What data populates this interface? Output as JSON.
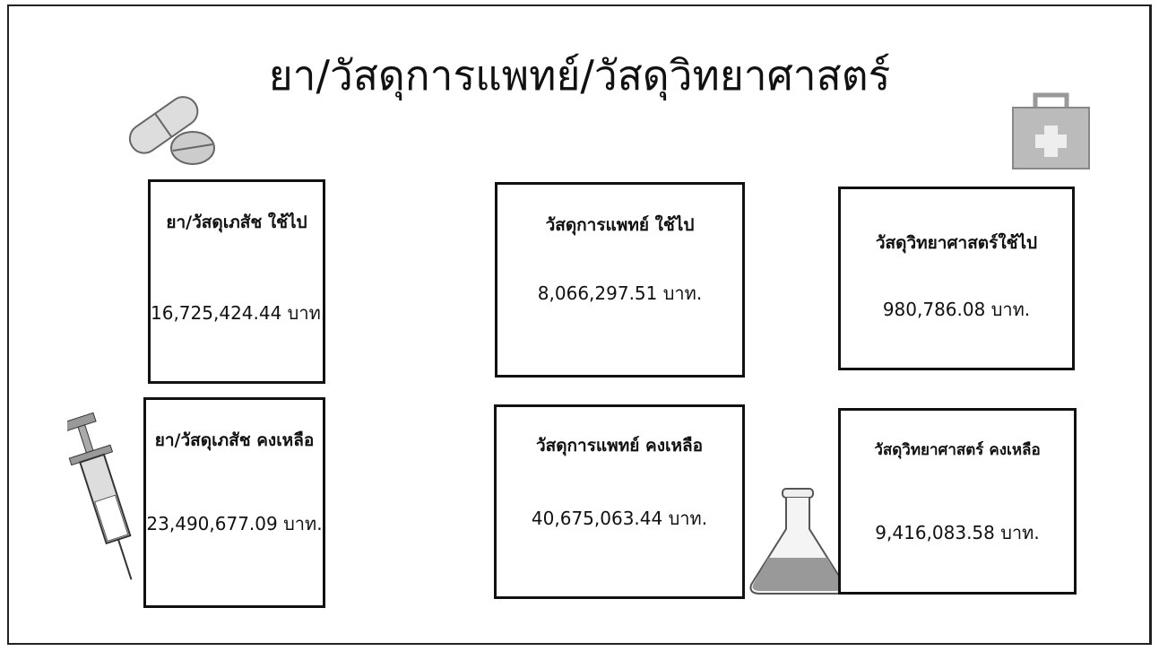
{
  "header": {
    "title": "ยา/วัสดุการแพทย์/วัสดุวิทยาศาสตร์"
  },
  "cards": [
    {
      "label": "ยา/วัสดุเภสัช ใช้ไป",
      "value": "16,725,424.44 บาท."
    },
    {
      "label": "วัสดุการแพทย์ ใช้ไป",
      "value": "8,066,297.51 บาท."
    },
    {
      "label": "วัสดุวิทยาศาสตร์ใช้ไป",
      "value": "980,786.08 บาท."
    },
    {
      "label": "ยา/วัสดุเภสัช คงเหลือ",
      "value": "23,490,677.09 บาท."
    },
    {
      "label": "วัสดุการแพทย์ คงเหลือ",
      "value": "40,675,063.44 บาท."
    },
    {
      "label": "วัสดุวิทยาศาสตร์ คงเหลือ",
      "value": "9,416,083.58 บาท."
    }
  ]
}
